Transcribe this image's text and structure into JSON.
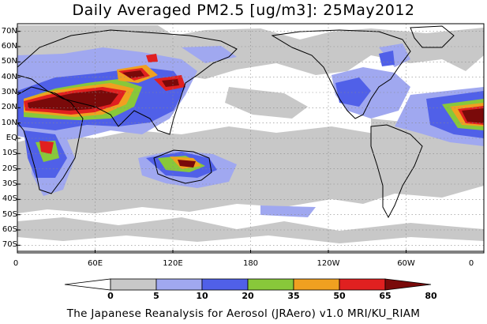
{
  "title": "Daily Averaged PM2.5 [ug/m3]: 25May2012",
  "footer": "The Japanese Reanalysis for Aerosol (JRAero) v1.0 MRI/KU_RIAM",
  "map": {
    "lat_labels": [
      "70N",
      "60N",
      "50N",
      "40N",
      "30N",
      "20N",
      "10N",
      "EQ",
      "10S",
      "20S",
      "30S",
      "40S",
      "50S",
      "60S",
      "70S"
    ],
    "lat_values": [
      70,
      60,
      50,
      40,
      30,
      20,
      10,
      0,
      -10,
      -20,
      -30,
      -40,
      -50,
      -60,
      -70
    ],
    "lon_labels": [
      "0",
      "60E",
      "120E",
      "180",
      "120W",
      "60W",
      "0"
    ],
    "lon_values": [
      0,
      60,
      120,
      180,
      240,
      300,
      360
    ],
    "lon_range": [
      0,
      360
    ],
    "lat_range": [
      -75,
      75
    ],
    "grid": true
  },
  "colorbar": {
    "levels": [
      "0",
      "5",
      "10",
      "20",
      "35",
      "50",
      "65",
      "80"
    ],
    "colors": [
      "#ffffff",
      "#c8c8c8",
      "#a0a8f0",
      "#5060e8",
      "#88c83a",
      "#f0a020",
      "#e02020",
      "#7a0a0a"
    ]
  },
  "colors": {
    "land_outline": "#000000",
    "grid_dots": "#888888"
  }
}
